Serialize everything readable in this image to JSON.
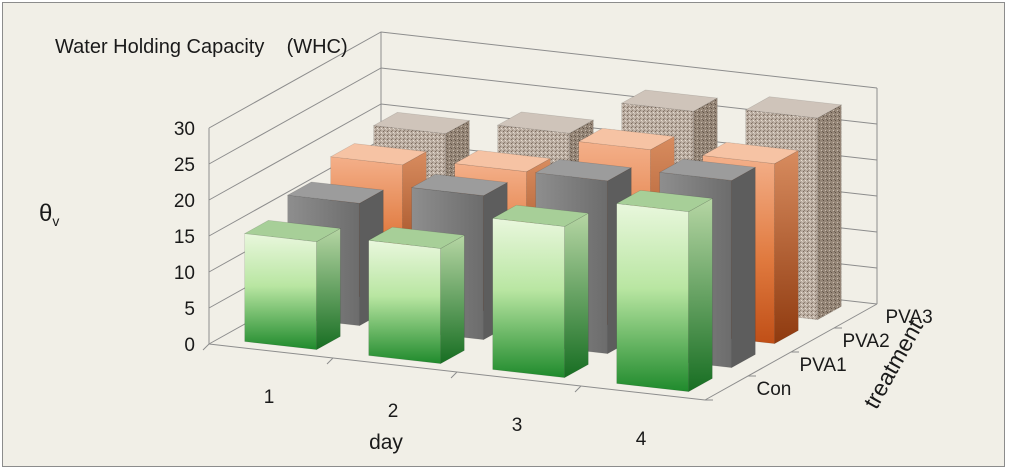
{
  "chart_data": {
    "type": "bar",
    "title": "Water Holding Capacity    (WHC)",
    "ylabel": "θv",
    "xlabel": "day",
    "zlabel": "treatment",
    "categories": [
      "1",
      "2",
      "3",
      "4"
    ],
    "series": [
      {
        "name": "Con",
        "values": [
          15,
          16,
          21,
          25
        ]
      },
      {
        "name": "PVA1",
        "values": [
          17,
          20,
          24,
          26
        ]
      },
      {
        "name": "PVA2",
        "values": [
          19,
          20,
          25,
          25
        ]
      },
      {
        "name": "PVA3",
        "values": [
          20,
          22,
          27,
          28
        ]
      }
    ],
    "yticks": [
      "0",
      "5",
      "10",
      "15",
      "20",
      "25",
      "30"
    ],
    "ylim": [
      0,
      30
    ],
    "grid": true,
    "colors": {
      "Con": "#2e9a3a",
      "PVA1": "#7a7a7a",
      "PVA2": "#e58a55",
      "PVA3": "#b8a99b"
    }
  }
}
